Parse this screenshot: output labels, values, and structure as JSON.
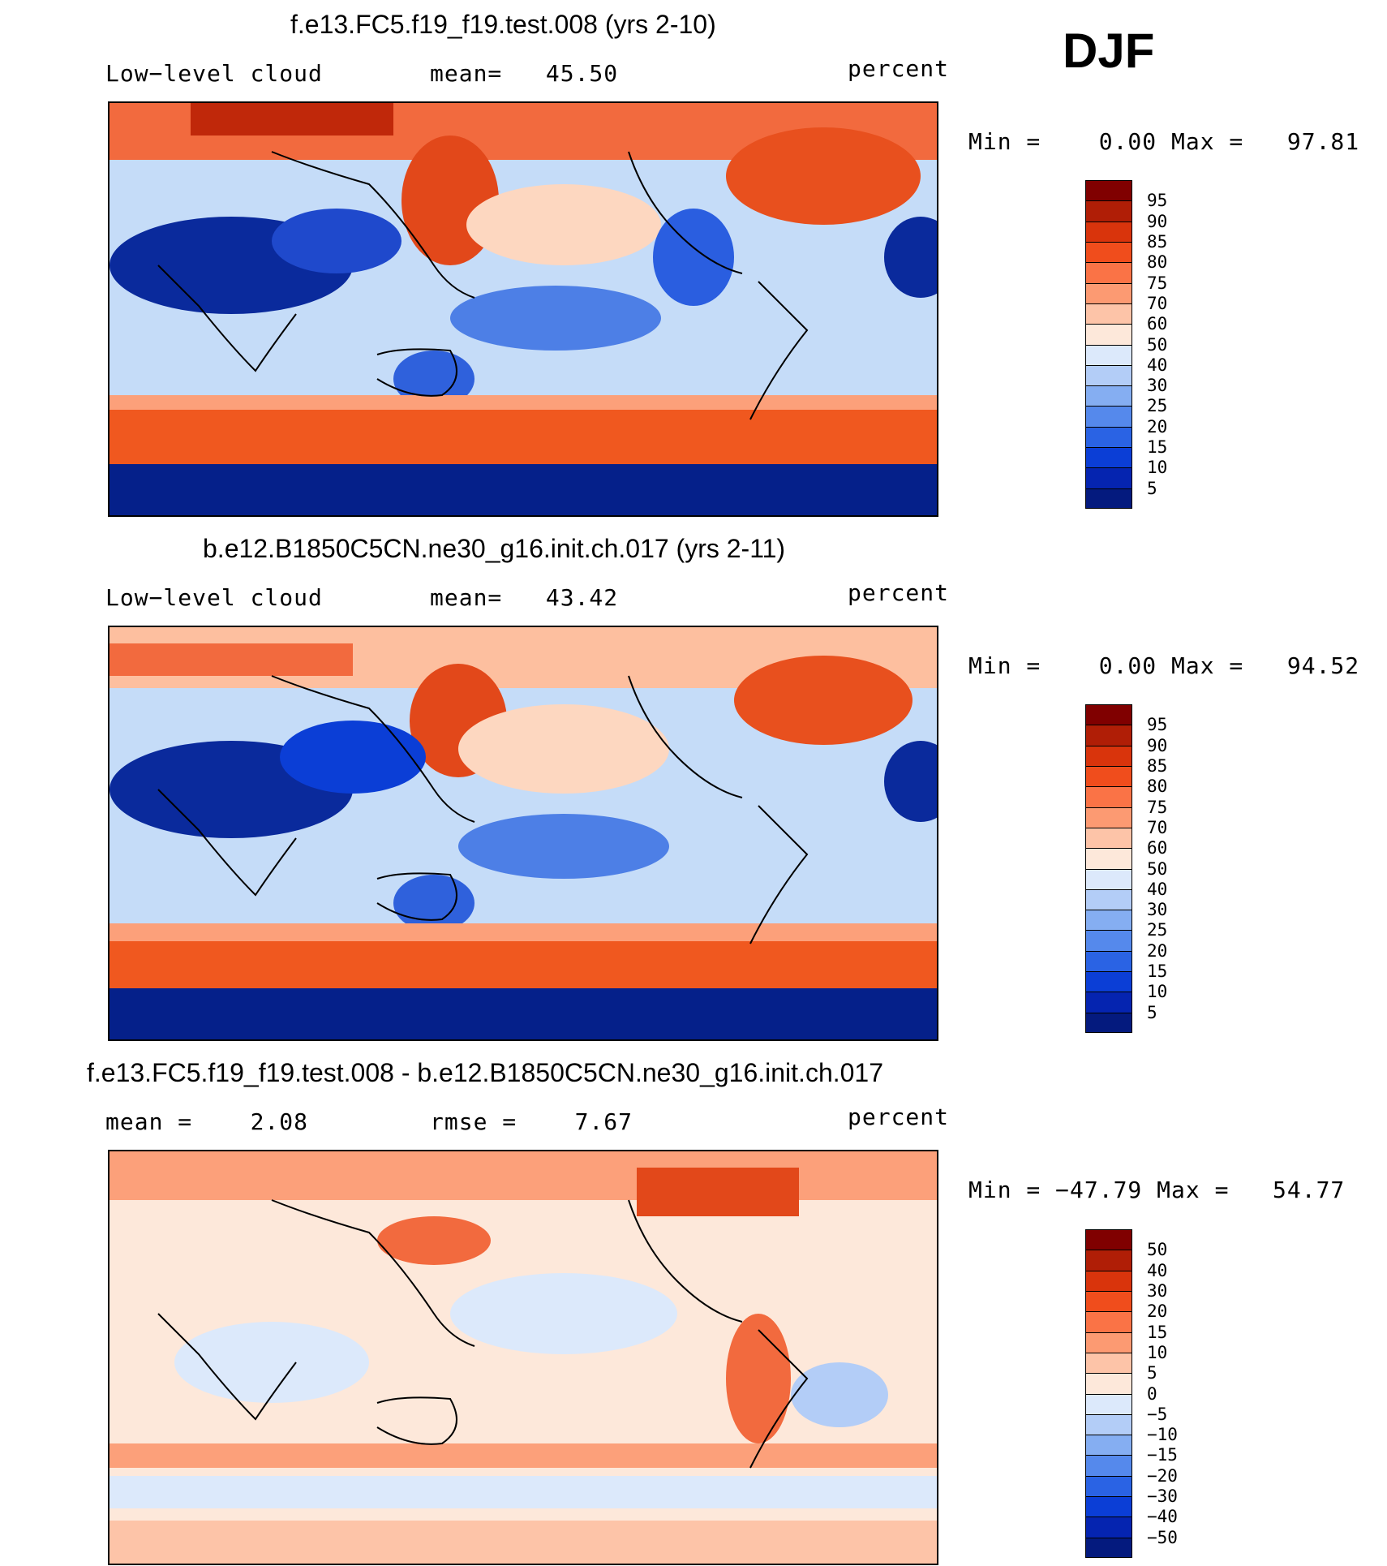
{
  "season": "DJF",
  "panels": [
    {
      "title": "f.e13.FC5.f19_f19.test.008 (yrs 2-10)",
      "left_label": "Low−level cloud",
      "mid_label": "mean=   45.50",
      "units": "percent",
      "minmax": "Min =    0.00 Max =   97.81"
    },
    {
      "title": "b.e12.B1850C5CN.ne30_g16.init.ch.017 (yrs 2-11)",
      "left_label": "Low−level cloud",
      "mid_label": "mean=   43.42",
      "units": "percent",
      "minmax": "Min =    0.00 Max =   94.52"
    },
    {
      "title": "f.e13.FC5.f19_f19.test.008 - b.e12.B1850C5CN.ne30_g16.init.ch.017",
      "left_label": "mean =    2.08",
      "mid_label": "rmse =    7.67",
      "units": "percent",
      "minmax": "Min = −47.79 Max =   54.77"
    }
  ],
  "colorbars": {
    "absolute": {
      "labels": [
        "95",
        "90",
        "85",
        "80",
        "75",
        "70",
        "60",
        "50",
        "40",
        "30",
        "25",
        "20",
        "15",
        "10",
        "5"
      ],
      "colors": [
        "#800000",
        "#b01e06",
        "#d9340c",
        "#f04d1c",
        "#fa7346",
        "#fc9a72",
        "#fdc4a8",
        "#fde8da",
        "#dce9fb",
        "#b3cdf7",
        "#85aef2",
        "#5589ec",
        "#2a63e4",
        "#0b3ed6",
        "#0524b0",
        "#041a7e"
      ]
    },
    "difference": {
      "labels": [
        "50",
        "40",
        "30",
        "20",
        "15",
        "10",
        "5",
        "0",
        "−5",
        "−10",
        "−15",
        "−20",
        "−30",
        "−40",
        "−50"
      ],
      "colors": [
        "#800000",
        "#b01e06",
        "#d9340c",
        "#f04d1c",
        "#fa7346",
        "#fc9a72",
        "#fdc4a8",
        "#fde8da",
        "#dce9fb",
        "#b3cdf7",
        "#85aef2",
        "#5589ec",
        "#2a63e4",
        "#0b3ed6",
        "#0524b0",
        "#041a7e"
      ]
    }
  }
}
